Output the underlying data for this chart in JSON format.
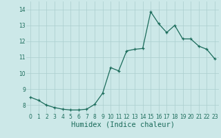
{
  "title": "",
  "xlabel": "Humidex (Indice chaleur)",
  "ylabel": "",
  "background_color": "#cce8e8",
  "line_color": "#1a6b5a",
  "marker_color": "#1a6b5a",
  "grid_color": "#aacece",
  "x": [
    0,
    1,
    2,
    3,
    4,
    5,
    6,
    7,
    8,
    9,
    10,
    11,
    12,
    13,
    14,
    15,
    16,
    17,
    18,
    19,
    20,
    21,
    22,
    23
  ],
  "y": [
    8.5,
    8.3,
    8.0,
    7.85,
    7.75,
    7.7,
    7.7,
    7.75,
    8.05,
    8.75,
    10.35,
    10.15,
    11.4,
    11.5,
    11.55,
    13.85,
    13.1,
    12.55,
    13.0,
    12.15,
    12.15,
    11.7,
    11.5,
    10.9
  ],
  "ylim": [
    7.5,
    14.5
  ],
  "xlim": [
    -0.5,
    23.5
  ],
  "yticks": [
    8,
    9,
    10,
    11,
    12,
    13,
    14
  ],
  "xticks": [
    0,
    1,
    2,
    3,
    4,
    5,
    6,
    7,
    8,
    9,
    10,
    11,
    12,
    13,
    14,
    15,
    16,
    17,
    18,
    19,
    20,
    21,
    22,
    23
  ],
  "tick_fontsize": 5.5,
  "xlabel_fontsize": 7.5
}
